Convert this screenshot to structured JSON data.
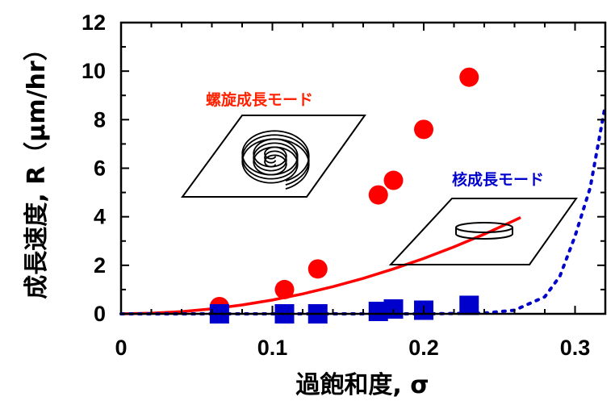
{
  "chart_data": {
    "type": "scatter",
    "xlabel": "過飽和度, σ",
    "ylabel": "成長速度, R（μm/hr）",
    "xlim": [
      0,
      0.32
    ],
    "ylim": [
      0,
      12
    ],
    "x_ticks": [
      "0",
      "0.1",
      "0.2",
      "0.3"
    ],
    "y_ticks": [
      "0",
      "2",
      "4",
      "6",
      "8",
      "10",
      "12"
    ],
    "series": [
      {
        "name": "螺旋成長モード",
        "color": "#ff0000",
        "marker": "circle",
        "points": [
          {
            "x": 0.065,
            "y": 0.3
          },
          {
            "x": 0.108,
            "y": 1.0
          },
          {
            "x": 0.13,
            "y": 1.85
          },
          {
            "x": 0.17,
            "y": 4.9
          },
          {
            "x": 0.18,
            "y": 5.5
          },
          {
            "x": 0.2,
            "y": 7.6
          },
          {
            "x": 0.23,
            "y": 9.75
          }
        ]
      },
      {
        "name": "核成長モード",
        "color": "#0000cc",
        "marker": "square",
        "points": [
          {
            "x": 0.065,
            "y": 0.0
          },
          {
            "x": 0.108,
            "y": 0.0
          },
          {
            "x": 0.13,
            "y": 0.0
          },
          {
            "x": 0.17,
            "y": 0.1
          },
          {
            "x": 0.18,
            "y": 0.2
          },
          {
            "x": 0.2,
            "y": 0.15
          },
          {
            "x": 0.23,
            "y": 0.35
          }
        ]
      }
    ],
    "fits": [
      {
        "series": "螺旋成長モード",
        "style": "solid",
        "color": "#ff0000",
        "x": [
          0,
          0.02,
          0.04,
          0.06,
          0.08,
          0.1,
          0.12,
          0.14,
          0.16,
          0.18,
          0.2,
          0.22,
          0.24,
          0.26,
          0.264
        ],
        "y": [
          0,
          0.023,
          0.092,
          0.206,
          0.366,
          0.57,
          0.82,
          1.12,
          1.46,
          1.85,
          2.28,
          2.76,
          3.28,
          3.85,
          3.97
        ]
      },
      {
        "series": "核成長モード",
        "style": "dotted",
        "color": "#0000cc",
        "x": [
          0,
          0.1,
          0.2,
          0.24,
          0.26,
          0.28,
          0.29,
          0.3,
          0.31,
          0.32
        ],
        "y": [
          0,
          0,
          0,
          0.03,
          0.15,
          0.7,
          1.55,
          3.2,
          5.2,
          8.6
        ]
      }
    ],
    "annotations": {
      "spiral_label": "螺旋成長モード",
      "nucleation_label": "核成長モード"
    }
  }
}
